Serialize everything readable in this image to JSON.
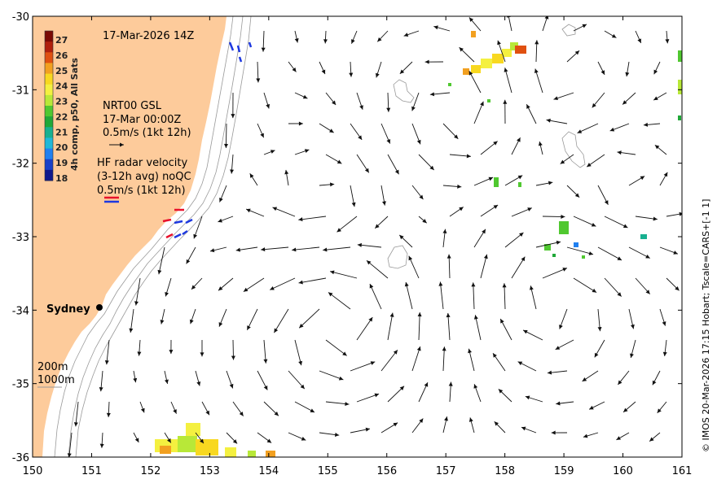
{
  "map": {
    "title_datetime": "17-Mar-2026 14Z",
    "place_label": "Sydney",
    "lon_ticks": [
      "150",
      "151",
      "152",
      "153",
      "154",
      "155",
      "156",
      "157",
      "158",
      "159",
      "160",
      "161"
    ],
    "lat_ticks": [
      "-30",
      "-31",
      "-32",
      "-33",
      "-34",
      "-35",
      "-36"
    ],
    "lon_range": [
      150,
      161
    ],
    "lat_range": [
      -36,
      -30
    ],
    "credit": "© IMOS 20-Mar-2026 17:15 Hobart; Tscale=CARS+[-1 1]",
    "colors": {
      "land": "#fdcb9b",
      "ocean": "#ffffff",
      "bathy": "#9a9a9a",
      "vector": "#111111",
      "radar_east": "#e8112b",
      "radar_west": "#1d38e0"
    }
  },
  "colorbar": {
    "title": "4h comp, p50, All Sats",
    "ticks": [
      "27",
      "26",
      "25",
      "24",
      "23",
      "22",
      "21",
      "20",
      "19",
      "18"
    ],
    "colors": [
      "#7a0a04",
      "#b0200c",
      "#e05010",
      "#f2a020",
      "#f8d820",
      "#f4f040",
      "#b8e838",
      "#50c830",
      "#20a838",
      "#18b090",
      "#20b8d8",
      "#2080f0",
      "#1840c8",
      "#10188c"
    ]
  },
  "legend": {
    "nrt_title": "NRT00 GSL",
    "nrt_time": "17-Mar 00:00Z",
    "nrt_scale": "0.5m/s (1kt 12h)",
    "hf_line1": "HF radar velocity",
    "hf_line2": "(3-12h avg) noQC",
    "hf_scale": "0.5m/s (1kt 12h)",
    "depth_200": "200m",
    "depth_1000": "1000m"
  }
}
